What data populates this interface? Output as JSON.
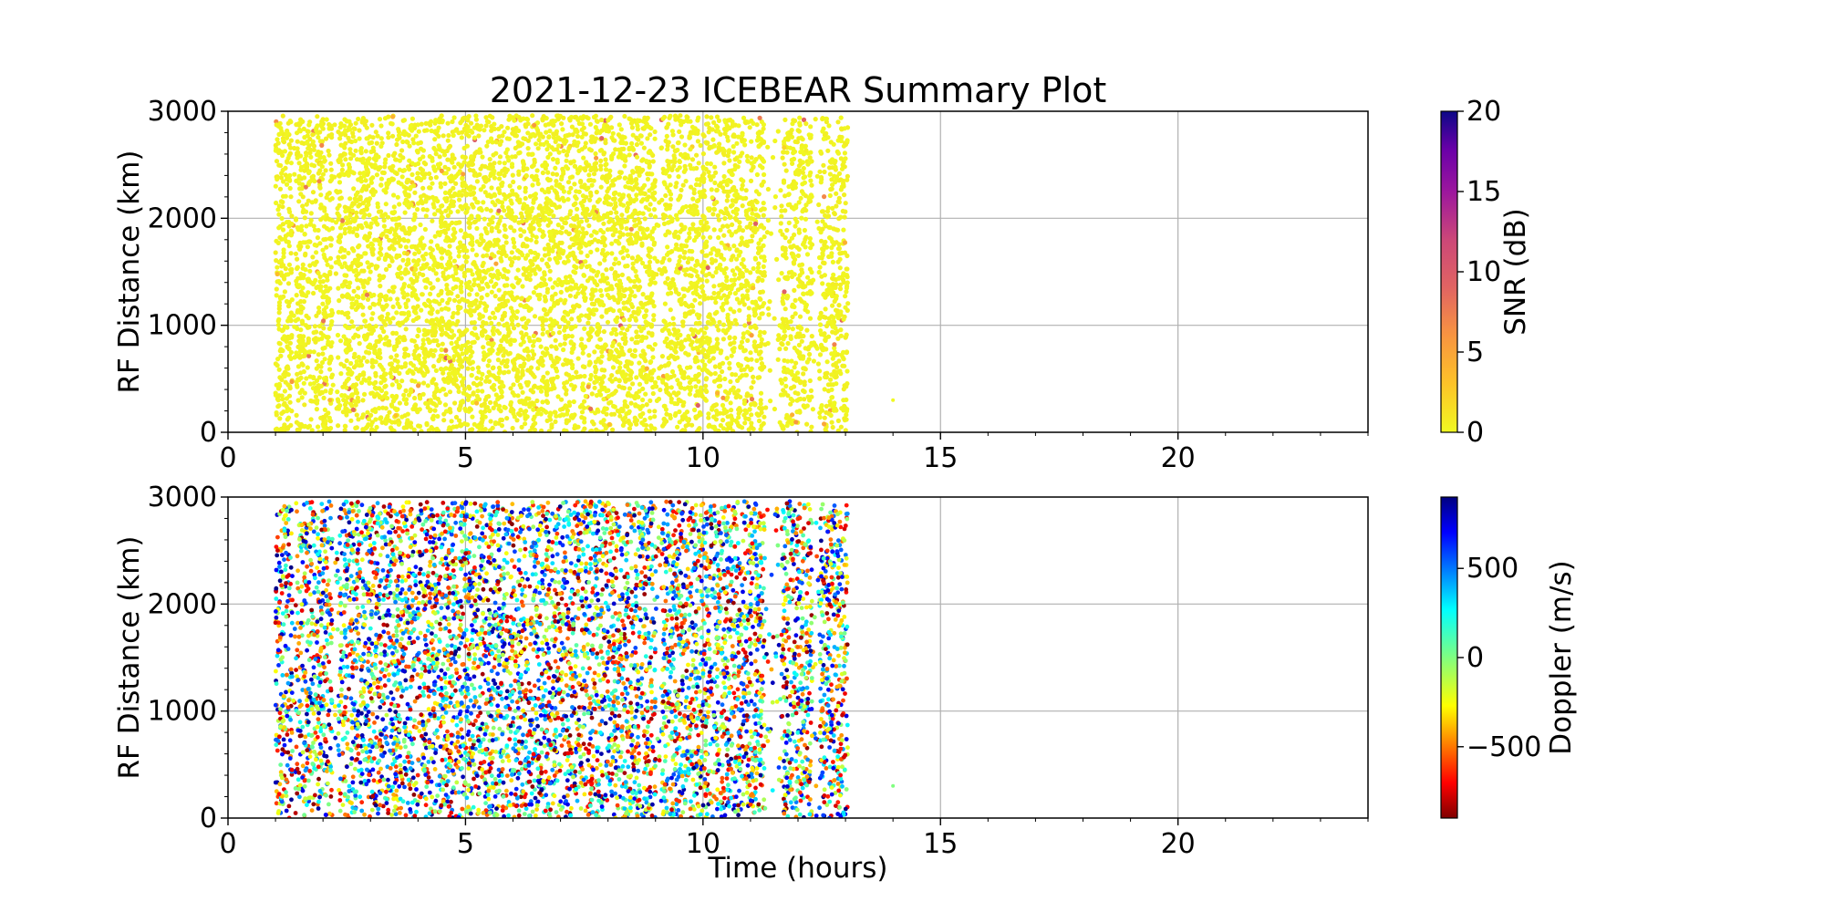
{
  "chart_data": [
    {
      "type": "scatter",
      "title": "2021-12-23 ICEBEAR Summary Plot",
      "xlabel": "",
      "ylabel": "RF Distance (km)",
      "xlim": [
        0,
        24
      ],
      "ylim": [
        0,
        3000
      ],
      "xticks": [
        0,
        5,
        10,
        15,
        20
      ],
      "yticks": [
        0,
        1000,
        2000,
        3000
      ],
      "grid": true,
      "data_extent": {
        "x_range": [
          1.0,
          13.05
        ],
        "y_range": [
          0,
          2960
        ]
      },
      "gaps_hours": [
        [
          1.35,
          1.42
        ],
        [
          2.2,
          2.3
        ],
        [
          9.0,
          9.12
        ],
        [
          11.3,
          11.65
        ],
        [
          12.3,
          12.45
        ]
      ],
      "isolated_points": [
        {
          "x": 14.0,
          "y": 300,
          "value": 0
        }
      ],
      "color_variable": "SNR",
      "typical_value": 0.5,
      "colorbar": {
        "label": "SNR (dB)",
        "min": 0,
        "max": 20,
        "ticks": [
          0,
          5,
          10,
          15,
          20
        ],
        "colormap": "plasma_r"
      }
    },
    {
      "type": "scatter",
      "title": "",
      "xlabel": "Time (hours)",
      "ylabel": "RF Distance (km)",
      "xlim": [
        0,
        24
      ],
      "ylim": [
        0,
        3000
      ],
      "xticks": [
        0,
        5,
        10,
        15,
        20
      ],
      "yticks": [
        0,
        1000,
        2000,
        3000
      ],
      "grid": true,
      "data_extent": {
        "x_range": [
          1.0,
          13.05
        ],
        "y_range": [
          0,
          2960
        ]
      },
      "gaps_hours": [
        [
          1.35,
          1.42
        ],
        [
          2.2,
          2.3
        ],
        [
          9.0,
          9.12
        ],
        [
          11.3,
          11.65
        ],
        [
          12.3,
          12.45
        ]
      ],
      "isolated_points": [
        {
          "x": 14.0,
          "y": 300,
          "value": 0
        }
      ],
      "color_variable": "Doppler",
      "value_range": [
        -900,
        900
      ],
      "colorbar": {
        "label": "Doppler (m/s)",
        "min": -900,
        "max": 900,
        "ticks": [
          500,
          0,
          -500
        ],
        "tick_labels": [
          "500",
          "0",
          "−500"
        ],
        "colormap": "jet_r"
      }
    }
  ]
}
